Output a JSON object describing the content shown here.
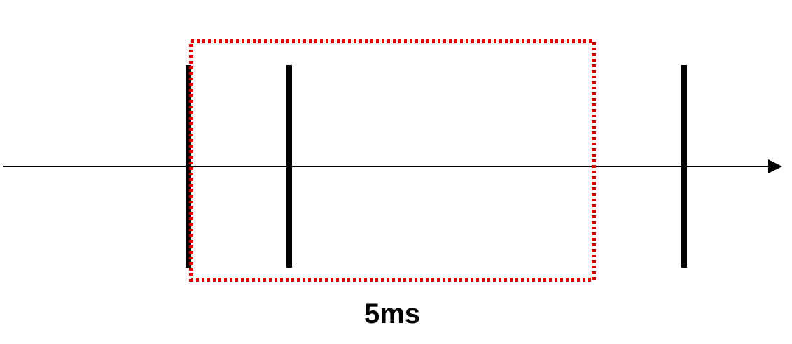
{
  "diagram": {
    "window_label": "5ms",
    "events_count": 3
  },
  "colors": {
    "axis": "#000000",
    "event_marker": "#000000",
    "window_border": "#e00000",
    "label": "#000000"
  }
}
